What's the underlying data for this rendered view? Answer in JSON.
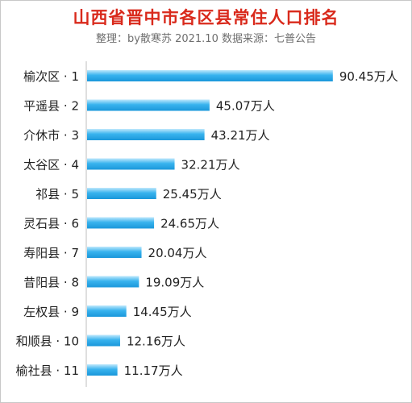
{
  "chart_data": {
    "type": "bar",
    "orientation": "horizontal",
    "title": "山西省晋中市各区县常住人口排名",
    "subtitle": "整理：by散寒苏  2021.10  数据来源：七普公告",
    "categories": [
      "榆次区 · 1",
      "平遥县 · 2",
      "介休市 · 3",
      "太谷区 · 4",
      "祁县 · 5",
      "灵石县 · 6",
      "寿阳县 · 7",
      "昔阳县 · 8",
      "左权县 · 9",
      "和顺县 · 10",
      "榆社县 · 11"
    ],
    "values": [
      90.45,
      45.07,
      43.21,
      32.21,
      25.45,
      24.65,
      20.04,
      19.09,
      14.45,
      12.16,
      11.17
    ],
    "value_labels": [
      "90.45万人",
      "45.07万人",
      "43.21万人",
      "32.21万人",
      "25.45万人",
      "24.65万人",
      "20.04万人",
      "19.09万人",
      "14.45万人",
      "12.16万人",
      "11.17万人"
    ],
    "xlim": [
      0,
      100
    ],
    "grid": false,
    "legend": "none",
    "colors": {
      "bar": "#1fa3e6",
      "bar_light": "#8fd4f7",
      "title": "#d92a1c",
      "subtitle": "#6e6e6e",
      "axis": "#bfbfbf",
      "text": "#222222"
    }
  }
}
